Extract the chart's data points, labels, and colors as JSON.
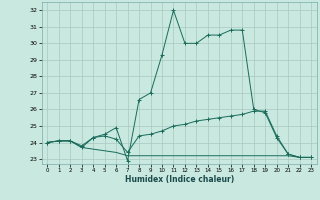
{
  "title": "",
  "xlabel": "Humidex (Indice chaleur)",
  "xlim": [
    -0.5,
    23.5
  ],
  "ylim": [
    22.7,
    32.5
  ],
  "yticks": [
    23,
    24,
    25,
    26,
    27,
    28,
    29,
    30,
    31,
    32
  ],
  "xticks": [
    0,
    1,
    2,
    3,
    4,
    5,
    6,
    7,
    8,
    9,
    10,
    11,
    12,
    13,
    14,
    15,
    16,
    17,
    18,
    19,
    20,
    21,
    22,
    23
  ],
  "bg_color": "#c8e8e0",
  "grid_color": "#a8c8c0",
  "line_color": "#1a6b5a",
  "line1": [
    24.0,
    24.1,
    24.1,
    23.8,
    24.3,
    24.5,
    24.9,
    22.9,
    26.6,
    27.0,
    29.3,
    32.0,
    30.0,
    30.0,
    30.5,
    30.5,
    30.8,
    30.8,
    26.0,
    25.8,
    24.3,
    23.3,
    23.1,
    23.1
  ],
  "line2": [
    24.0,
    24.1,
    24.1,
    23.7,
    24.3,
    24.4,
    24.2,
    23.4,
    24.4,
    24.5,
    24.7,
    25.0,
    25.1,
    25.3,
    25.4,
    25.5,
    25.6,
    25.7,
    25.9,
    25.9,
    24.4,
    23.3,
    23.1,
    23.1
  ],
  "line3": [
    24.0,
    24.1,
    24.1,
    23.7,
    23.6,
    23.5,
    23.4,
    23.2,
    23.2,
    23.2,
    23.2,
    23.2,
    23.2,
    23.2,
    23.2,
    23.2,
    23.2,
    23.2,
    23.2,
    23.2,
    23.2,
    23.2,
    23.1,
    23.1
  ]
}
